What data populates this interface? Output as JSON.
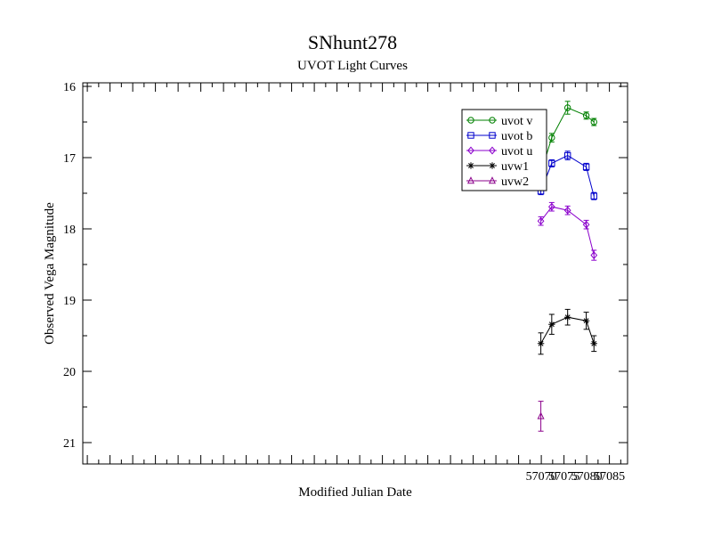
{
  "chart_data": {
    "type": "line",
    "title": "SNhunt278",
    "subtitle": "UVOT Light Curves",
    "xlabel": "Modified Julian Date",
    "ylabel": "Observed Vega Magnitude",
    "xlim": [
      56969,
      57089
    ],
    "ylim": [
      21.3,
      15.95
    ],
    "y_inverted": true,
    "grid": false,
    "legend_position": "top-right",
    "xticks": [
      57070,
      57075,
      57080,
      57085
    ],
    "yticks": [
      16,
      17,
      18,
      19,
      20,
      21
    ],
    "xtick_labels": [
      "57070",
      "57075",
      "57080",
      "57085"
    ],
    "ytick_labels": [
      "16",
      "17",
      "18",
      "19",
      "20",
      "21"
    ],
    "series": [
      {
        "name": "uvot v",
        "color": "#008000",
        "marker": "circle",
        "x": [
          57069.9,
          57072.3,
          57075.8,
          57079.9,
          57081.6
        ],
        "y": [
          17.22,
          16.72,
          16.3,
          16.41,
          16.5
        ],
        "yerr": [
          0.05,
          0.06,
          0.09,
          0.05,
          0.05
        ]
      },
      {
        "name": "uvot b",
        "color": "#0000cc",
        "marker": "square",
        "x": [
          57069.9,
          57072.3,
          57075.8,
          57079.9,
          57081.6
        ],
        "y": [
          17.47,
          17.08,
          16.97,
          17.13,
          17.54
        ],
        "yerr": [
          0.05,
          0.05,
          0.06,
          0.05,
          0.05
        ]
      },
      {
        "name": "uvot u",
        "color": "#8b00cc",
        "marker": "diamond",
        "x": [
          57069.9,
          57072.3,
          57075.8,
          57079.9,
          57081.6
        ],
        "y": [
          17.89,
          17.69,
          17.74,
          17.94,
          18.37
        ],
        "yerr": [
          0.06,
          0.06,
          0.06,
          0.06,
          0.07
        ]
      },
      {
        "name": "uvw1",
        "color": "#000000",
        "marker": "star",
        "x": [
          57069.9,
          57072.3,
          57075.8,
          57079.9,
          57081.6
        ],
        "y": [
          19.61,
          19.34,
          19.24,
          19.29,
          19.61
        ],
        "yerr": [
          0.15,
          0.14,
          0.11,
          0.12,
          0.11
        ]
      },
      {
        "name": "uvw2",
        "color": "#8b008b",
        "marker": "triangle",
        "x": [
          57069.9
        ],
        "y": [
          20.63
        ],
        "yerr": [
          0.21
        ]
      }
    ]
  }
}
